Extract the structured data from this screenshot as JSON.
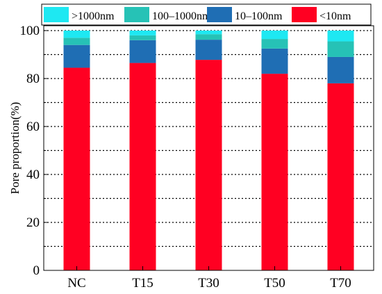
{
  "chart_data": {
    "type": "bar",
    "stacked": true,
    "categories": [
      "NC",
      "T15",
      "T30",
      "T50",
      "T70"
    ],
    "series": [
      {
        "name": "<10nm",
        "color": "#ff0022",
        "values": [
          84.5,
          86.5,
          87.8,
          82.0,
          78.0
        ]
      },
      {
        "name": "10–100nm",
        "color": "#1f6eb4",
        "values": [
          9.5,
          9.5,
          8.4,
          10.5,
          11.0
        ]
      },
      {
        "name": "100–1000nm",
        "color": "#26c2b6",
        "values": [
          3.0,
          2.0,
          2.3,
          4.0,
          6.5
        ]
      },
      {
        "name": ">1000nm",
        "color": "#1ee8f2",
        "values": [
          3.0,
          2.0,
          1.5,
          3.5,
          4.5
        ]
      }
    ],
    "legend_labels": [
      ">1000nm",
      "100–1000nm",
      "10–100nm",
      "<10nm"
    ],
    "ylabel": "Pore proportion(%)",
    "xlabel": "",
    "ylim": [
      0,
      100
    ],
    "yticks": [
      0,
      20,
      40,
      60,
      80,
      100
    ],
    "grid": "horizontal dotted",
    "legend_position": "top"
  }
}
